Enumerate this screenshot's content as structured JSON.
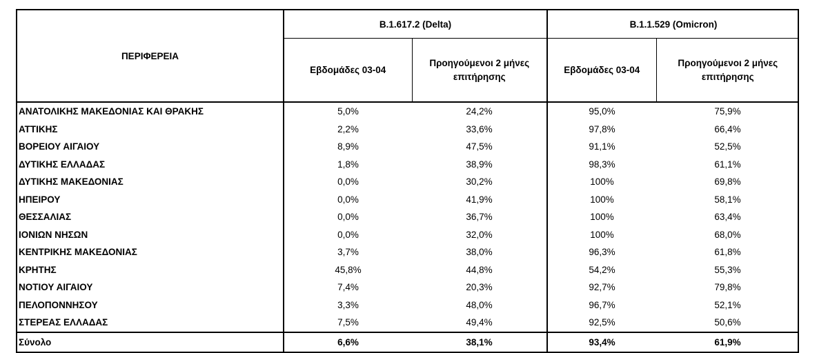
{
  "table": {
    "region_header": "ΠΕΡΙΦΕΡΕΙΑ",
    "groups": [
      "B.1.617.2 (Delta)",
      "B.1.1.529 (Omicron)"
    ],
    "subheaders": {
      "weeks": "Εβδομάδες 03-04",
      "prev_line1": "Προηγούμενοι 2 μήνες",
      "prev_line2": "επιτήρησης"
    },
    "rows": [
      {
        "region": "ΑΝΑΤΟΛΙΚΗΣ ΜΑΚΕΔΟΝΙΑΣ ΚΑΙ ΘΡΑΚΗΣ",
        "delta_weeks": "5,0%",
        "delta_prev": "24,2%",
        "omicron_weeks": "95,0%",
        "omicron_prev": "75,9%"
      },
      {
        "region": "ΑΤΤΙΚΗΣ",
        "delta_weeks": "2,2%",
        "delta_prev": "33,6%",
        "omicron_weeks": "97,8%",
        "omicron_prev": "66,4%"
      },
      {
        "region": "ΒΟΡΕΙΟΥ ΑΙΓΑΙΟΥ",
        "delta_weeks": "8,9%",
        "delta_prev": "47,5%",
        "omicron_weeks": "91,1%",
        "omicron_prev": "52,5%"
      },
      {
        "region": "ΔΥΤΙΚΗΣ ΕΛΛΑΔΑΣ",
        "delta_weeks": "1,8%",
        "delta_prev": "38,9%",
        "omicron_weeks": "98,3%",
        "omicron_prev": "61,1%"
      },
      {
        "region": "ΔΥΤΙΚΗΣ ΜΑΚΕΔΟΝΙΑΣ",
        "delta_weeks": "0,0%",
        "delta_prev": "30,2%",
        "omicron_weeks": "100%",
        "omicron_prev": "69,8%"
      },
      {
        "region": "ΗΠΕΙΡΟΥ",
        "delta_weeks": "0,0%",
        "delta_prev": "41,9%",
        "omicron_weeks": "100%",
        "omicron_prev": "58,1%"
      },
      {
        "region": "ΘΕΣΣΑΛΙΑΣ",
        "delta_weeks": "0,0%",
        "delta_prev": "36,7%",
        "omicron_weeks": "100%",
        "omicron_prev": "63,4%"
      },
      {
        "region": "ΙΟΝΙΩΝ ΝΗΣΩΝ",
        "delta_weeks": "0,0%",
        "delta_prev": "32,0%",
        "omicron_weeks": "100%",
        "omicron_prev": "68,0%"
      },
      {
        "region": "ΚΕΝΤΡΙΚΗΣ ΜΑΚΕΔΟΝΙΑΣ",
        "delta_weeks": "3,7%",
        "delta_prev": "38,0%",
        "omicron_weeks": "96,3%",
        "omicron_prev": "61,8%"
      },
      {
        "region": "ΚΡΗΤΗΣ",
        "delta_weeks": "45,8%",
        "delta_prev": "44,8%",
        "omicron_weeks": "54,2%",
        "omicron_prev": "55,3%"
      },
      {
        "region": "ΝΟΤΙΟΥ ΑΙΓΑΙΟΥ",
        "delta_weeks": "7,4%",
        "delta_prev": "20,3%",
        "omicron_weeks": "92,7%",
        "omicron_prev": "79,8%"
      },
      {
        "region": "ΠΕΛΟΠΟΝΝΗΣΟΥ",
        "delta_weeks": "3,3%",
        "delta_prev": "48,0%",
        "omicron_weeks": "96,7%",
        "omicron_prev": "52,1%"
      },
      {
        "region": "ΣΤΕΡΕΑΣ ΕΛΛΑΔΑΣ",
        "delta_weeks": "7,5%",
        "delta_prev": "49,4%",
        "omicron_weeks": "92,5%",
        "omicron_prev": "50,6%"
      }
    ],
    "total": {
      "region": "Σύνολο",
      "delta_weeks": "6,6%",
      "delta_prev": "38,1%",
      "omicron_weeks": "93,4%",
      "omicron_prev": "61,9%"
    }
  }
}
